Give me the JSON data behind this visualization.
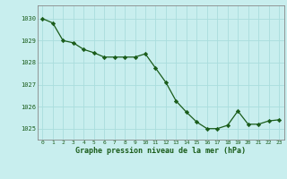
{
  "x": [
    0,
    1,
    2,
    3,
    4,
    5,
    6,
    7,
    8,
    9,
    10,
    11,
    12,
    13,
    14,
    15,
    16,
    17,
    18,
    19,
    20,
    21,
    22,
    23
  ],
  "y": [
    1030.0,
    1029.8,
    1029.0,
    1028.9,
    1028.6,
    1028.45,
    1028.25,
    1028.25,
    1028.25,
    1028.25,
    1028.4,
    1027.75,
    1027.1,
    1026.25,
    1025.75,
    1025.3,
    1025.0,
    1025.0,
    1025.15,
    1025.8,
    1025.2,
    1025.2,
    1025.35,
    1025.4
  ],
  "line_color": "#1a5c1a",
  "marker_color": "#1a5c1a",
  "bg_color": "#c8eeee",
  "grid_color": "#aadddd",
  "xlabel": "Graphe pression niveau de la mer (hPa)",
  "xlabel_color": "#1a5c1a",
  "tick_color": "#1a5c1a",
  "ylim": [
    1024.5,
    1030.6
  ],
  "yticks": [
    1025,
    1026,
    1027,
    1028,
    1029,
    1030
  ],
  "xticks": [
    0,
    1,
    2,
    3,
    4,
    5,
    6,
    7,
    8,
    9,
    10,
    11,
    12,
    13,
    14,
    15,
    16,
    17,
    18,
    19,
    20,
    21,
    22,
    23
  ],
  "axis_color": "#888888"
}
